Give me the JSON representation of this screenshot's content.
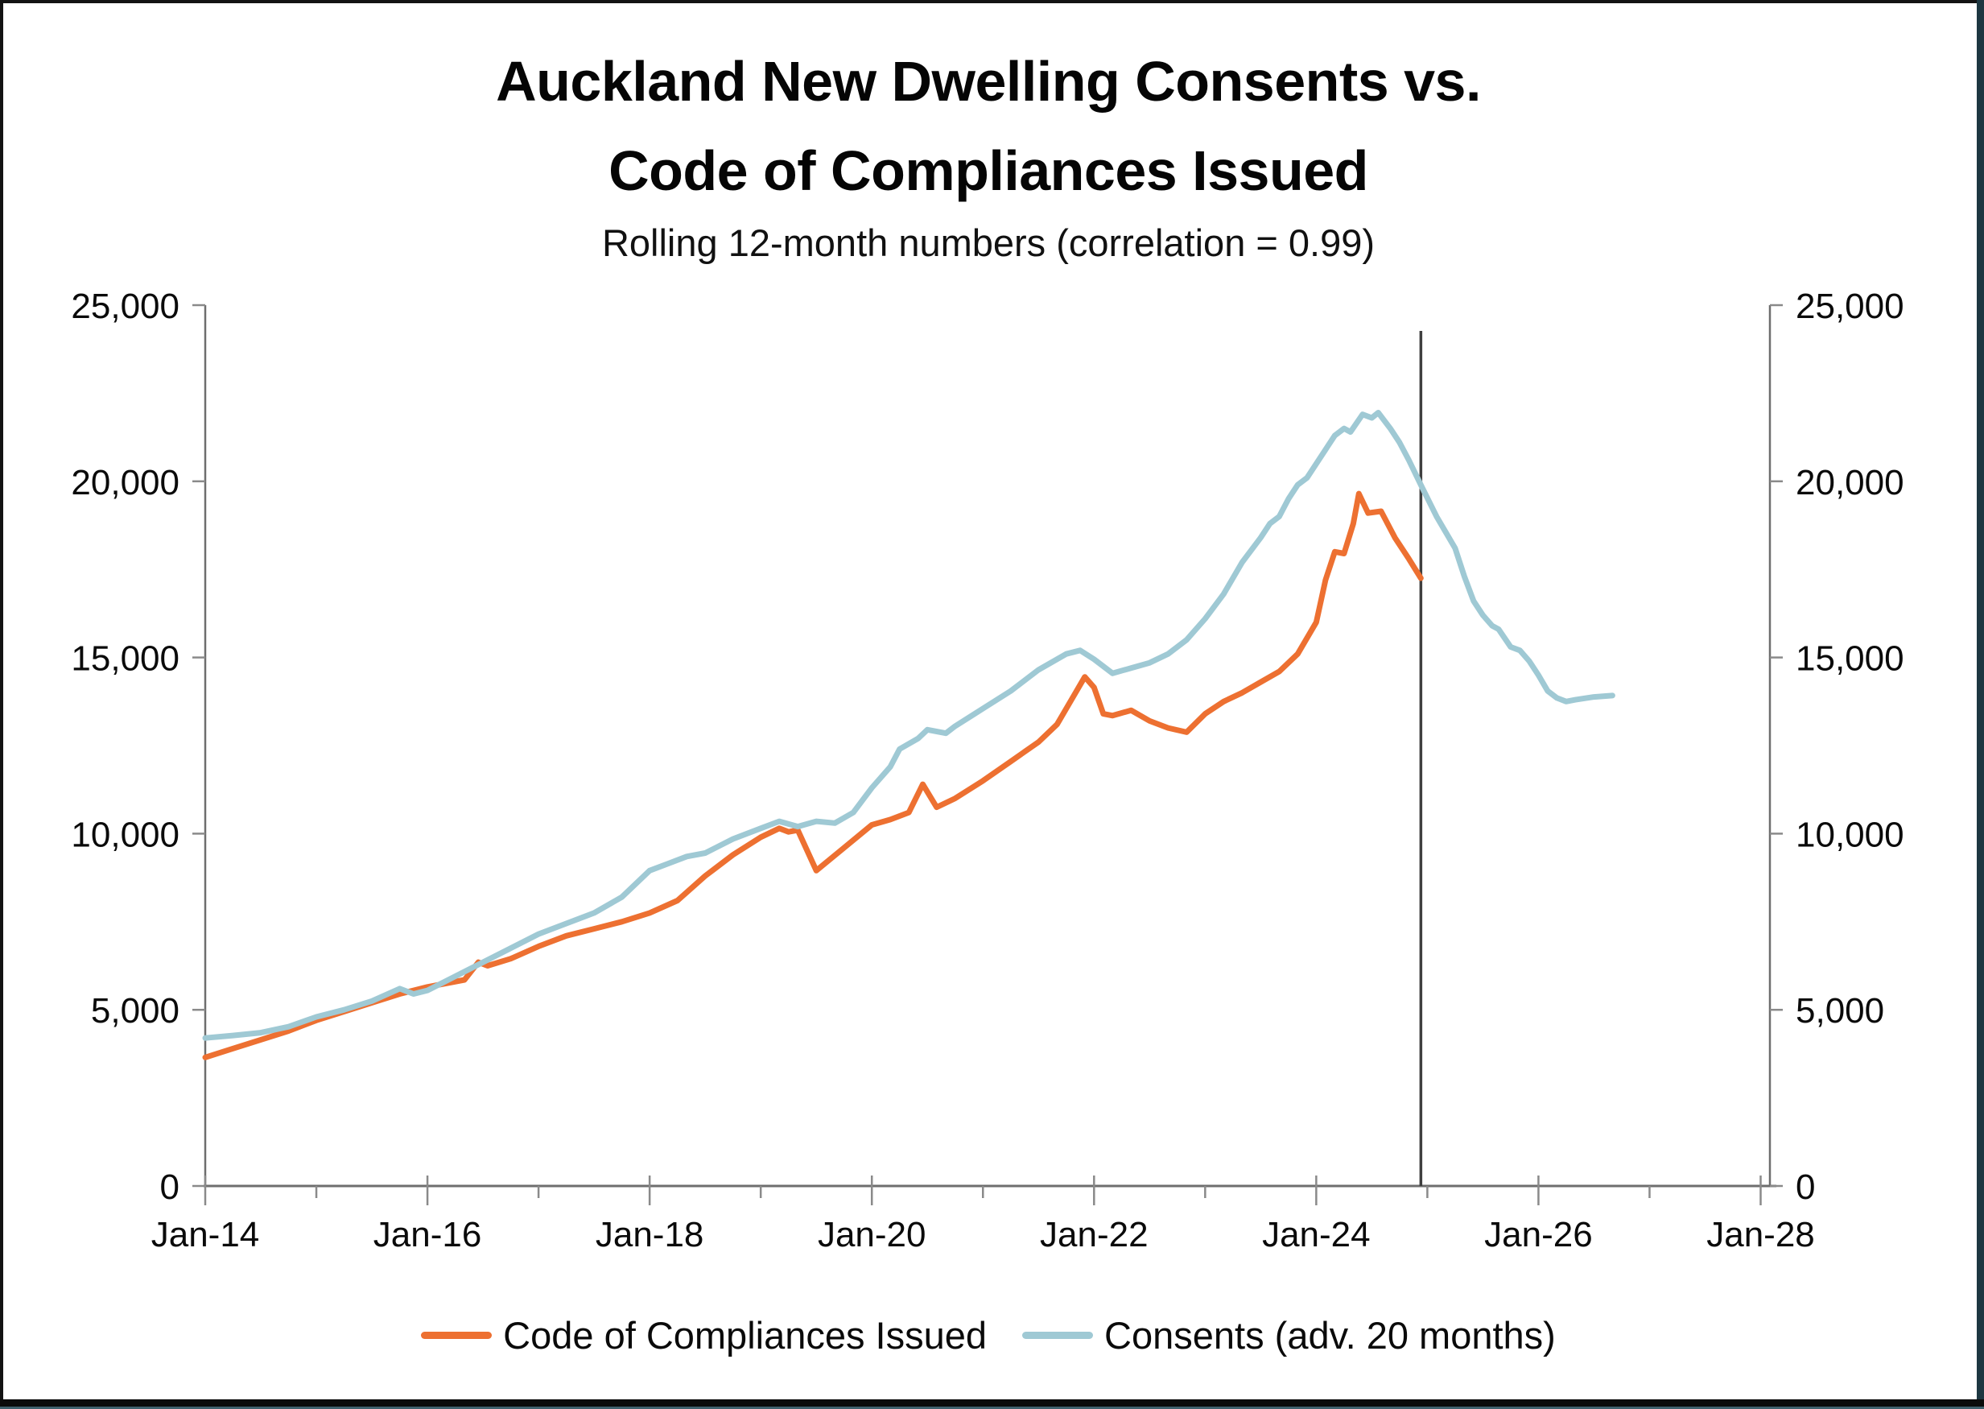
{
  "title": {
    "line1": "Auckland New Dwelling Consents vs.",
    "line2": "Code of Compliances Issued"
  },
  "subtitle": "Rolling 12-month numbers (correlation = 0.99)",
  "legend": {
    "items": [
      {
        "label": "Code of Compliances Issued",
        "color": "#ED7031"
      },
      {
        "label": "Consents (adv. 20 months)",
        "color": "#9FC9D4"
      }
    ]
  },
  "colors": {
    "compliances_line": "#ED7031",
    "consents_line": "#9FC9D4",
    "axis_line": "#6e6e6e",
    "tick_mark": "#8a8a8a",
    "reference_line": "#3f3f3f",
    "text": "#0a0a0a"
  },
  "chart_data": {
    "type": "line",
    "title": "Auckland New Dwelling Consents vs. Code of Compliances Issued",
    "subtitle": "Rolling 12-month numbers (correlation = 0.99)",
    "grid": false,
    "legend_position": "bottom",
    "x_axis": {
      "unit": "months since Jan-2014",
      "range_months": [
        0,
        169
      ],
      "major_ticks": [
        {
          "months": 0,
          "label": "Jan-14"
        },
        {
          "months": 24,
          "label": "Jan-16"
        },
        {
          "months": 48,
          "label": "Jan-18"
        },
        {
          "months": 72,
          "label": "Jan-20"
        },
        {
          "months": 96,
          "label": "Jan-22"
        },
        {
          "months": 120,
          "label": "Jan-24"
        },
        {
          "months": 144,
          "label": "Jan-26"
        },
        {
          "months": 168,
          "label": "Jan-28"
        }
      ],
      "minor_ticks_months": [
        12,
        36,
        60,
        84,
        108,
        132,
        156
      ]
    },
    "y_axis": {
      "range": [
        0,
        25000
      ],
      "ticks": [
        0,
        5000,
        10000,
        15000,
        20000,
        25000
      ],
      "sides": "left and right",
      "label_format": "#,##0"
    },
    "reference_line": {
      "x_months": 131.3,
      "approx_date": "Dec-24",
      "color": "#3f3f3f"
    },
    "series": [
      {
        "name": "Code of Compliances Issued",
        "color": "#ED7031",
        "ends_at_reference_line": true,
        "points": [
          [
            0,
            3650
          ],
          [
            3,
            3900
          ],
          [
            6,
            4150
          ],
          [
            9,
            4400
          ],
          [
            12,
            4700
          ],
          [
            15,
            4950
          ],
          [
            18,
            5200
          ],
          [
            21,
            5450
          ],
          [
            24,
            5650
          ],
          [
            26,
            5750
          ],
          [
            28,
            5850
          ],
          [
            29.5,
            6350
          ],
          [
            30.5,
            6250
          ],
          [
            33,
            6450
          ],
          [
            36,
            6800
          ],
          [
            39,
            7100
          ],
          [
            42,
            7300
          ],
          [
            45,
            7500
          ],
          [
            48,
            7750
          ],
          [
            51,
            8100
          ],
          [
            54,
            8800
          ],
          [
            57,
            9400
          ],
          [
            60,
            9900
          ],
          [
            62,
            10150
          ],
          [
            63,
            10050
          ],
          [
            64,
            10100
          ],
          [
            66,
            8950
          ],
          [
            69,
            9600
          ],
          [
            72,
            10250
          ],
          [
            74,
            10400
          ],
          [
            76,
            10600
          ],
          [
            77.5,
            11400
          ],
          [
            79,
            10750
          ],
          [
            81,
            11000
          ],
          [
            84,
            11500
          ],
          [
            87,
            12050
          ],
          [
            90,
            12600
          ],
          [
            92,
            13100
          ],
          [
            94,
            14000
          ],
          [
            95,
            14450
          ],
          [
            96,
            14150
          ],
          [
            97,
            13400
          ],
          [
            98,
            13350
          ],
          [
            100,
            13500
          ],
          [
            102,
            13200
          ],
          [
            104,
            13000
          ],
          [
            106,
            12880
          ],
          [
            108,
            13400
          ],
          [
            110,
            13750
          ],
          [
            112,
            14000
          ],
          [
            114,
            14300
          ],
          [
            116,
            14600
          ],
          [
            118,
            15100
          ],
          [
            120,
            16000
          ],
          [
            121,
            17200
          ],
          [
            122,
            18000
          ],
          [
            123,
            17950
          ],
          [
            124,
            18800
          ],
          [
            124.6,
            19650
          ],
          [
            125.6,
            19100
          ],
          [
            127,
            19150
          ],
          [
            128.5,
            18400
          ],
          [
            130,
            17800
          ],
          [
            131.3,
            17250
          ]
        ]
      },
      {
        "name": "Consents (adv. 20 months)",
        "color": "#9FC9D4",
        "points": [
          [
            0,
            4200
          ],
          [
            3,
            4270
          ],
          [
            6,
            4350
          ],
          [
            9,
            4520
          ],
          [
            12,
            4800
          ],
          [
            15,
            5000
          ],
          [
            18,
            5250
          ],
          [
            21,
            5600
          ],
          [
            22.5,
            5450
          ],
          [
            24,
            5550
          ],
          [
            27,
            5950
          ],
          [
            30,
            6350
          ],
          [
            33,
            6750
          ],
          [
            36,
            7150
          ],
          [
            39,
            7450
          ],
          [
            42,
            7750
          ],
          [
            45,
            8200
          ],
          [
            48,
            8950
          ],
          [
            50,
            9150
          ],
          [
            52,
            9350
          ],
          [
            54,
            9450
          ],
          [
            57,
            9850
          ],
          [
            60,
            10150
          ],
          [
            62,
            10350
          ],
          [
            64,
            10200
          ],
          [
            66,
            10350
          ],
          [
            68,
            10300
          ],
          [
            70,
            10600
          ],
          [
            72,
            11300
          ],
          [
            74,
            11900
          ],
          [
            75,
            12400
          ],
          [
            77,
            12700
          ],
          [
            78,
            12950
          ],
          [
            80,
            12850
          ],
          [
            81,
            13050
          ],
          [
            84,
            13550
          ],
          [
            87,
            14050
          ],
          [
            90,
            14650
          ],
          [
            93,
            15100
          ],
          [
            94.5,
            15200
          ],
          [
            96,
            14950
          ],
          [
            98,
            14550
          ],
          [
            100,
            14700
          ],
          [
            102,
            14850
          ],
          [
            104,
            15100
          ],
          [
            106,
            15500
          ],
          [
            108,
            16100
          ],
          [
            110,
            16800
          ],
          [
            112,
            17700
          ],
          [
            114,
            18400
          ],
          [
            115,
            18800
          ],
          [
            116,
            19000
          ],
          [
            117,
            19500
          ],
          [
            118,
            19900
          ],
          [
            119,
            20100
          ],
          [
            120,
            20500
          ],
          [
            121,
            20900
          ],
          [
            122,
            21300
          ],
          [
            123,
            21500
          ],
          [
            123.7,
            21400
          ],
          [
            125,
            21900
          ],
          [
            126,
            21800
          ],
          [
            126.7,
            21950
          ],
          [
            128,
            21500
          ],
          [
            129,
            21100
          ],
          [
            130,
            20600
          ],
          [
            131.3,
            19900
          ],
          [
            133,
            19000
          ],
          [
            135,
            18100
          ],
          [
            136,
            17300
          ],
          [
            137,
            16600
          ],
          [
            138,
            16200
          ],
          [
            139,
            15900
          ],
          [
            139.7,
            15800
          ],
          [
            141,
            15300
          ],
          [
            142,
            15200
          ],
          [
            143,
            14900
          ],
          [
            144,
            14500
          ],
          [
            145,
            14050
          ],
          [
            146,
            13850
          ],
          [
            147,
            13750
          ],
          [
            148,
            13800
          ],
          [
            150,
            13880
          ],
          [
            152,
            13920
          ]
        ]
      }
    ]
  }
}
